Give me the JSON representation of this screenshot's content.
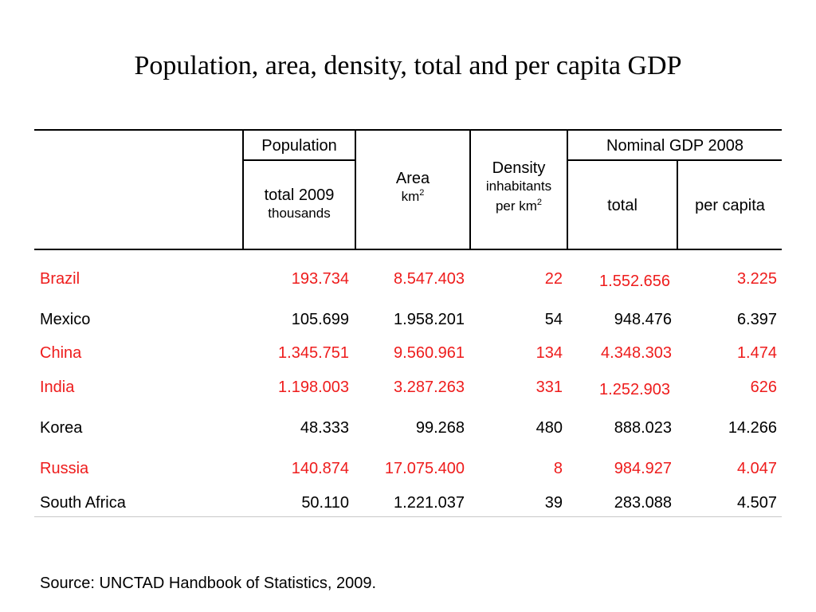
{
  "title": "Population, area, density, total and per capita GDP",
  "header": {
    "population_group": "Population",
    "population_total": "total 2009",
    "population_unit": "thousands",
    "area": "Area",
    "area_unit_base": "km",
    "area_unit_exp": "2",
    "density": "Density",
    "density_unit_line1": "inhabitants",
    "density_unit_base": "per km",
    "density_unit_exp": "2",
    "gdp_group": "Nominal GDP 2008",
    "gdp_total": "total",
    "gdp_per_capita": "per capita"
  },
  "highlight_color": "#ee1c1c",
  "rows": [
    {
      "country": "Brazil",
      "population": "193.734",
      "area": "8.547.403",
      "density": "22",
      "gdp_total": "1.552.656",
      "gdp_per_capita": "3.225",
      "highlight": true
    },
    {
      "country": "Mexico",
      "population": "105.699",
      "area": "1.958.201",
      "density": "54",
      "gdp_total": "948.476",
      "gdp_per_capita": "6.397",
      "highlight": false
    },
    {
      "country": "China",
      "population": "1.345.751",
      "area": "9.560.961",
      "density": "134",
      "gdp_total": "4.348.303",
      "gdp_per_capita": "1.474",
      "highlight": true
    },
    {
      "country": "India",
      "population": "1.198.003",
      "area": "3.287.263",
      "density": "331",
      "gdp_total": "1.252.903",
      "gdp_per_capita": "626",
      "highlight": true
    },
    {
      "country": "Korea",
      "population": "48.333",
      "area": "99.268",
      "density": "480",
      "gdp_total": "888.023",
      "gdp_per_capita": "14.266",
      "highlight": false
    },
    {
      "country": "Russia",
      "population": "140.874",
      "area": "17.075.400",
      "density": "8",
      "gdp_total": "984.927",
      "gdp_per_capita": "4.047",
      "highlight": true
    },
    {
      "country": "South Africa",
      "population": "50.110",
      "area": "1.221.037",
      "density": "39",
      "gdp_total": "283.088",
      "gdp_per_capita": "4.507",
      "highlight": false
    }
  ],
  "source": "Source: UNCTAD Handbook of Statistics, 2009."
}
